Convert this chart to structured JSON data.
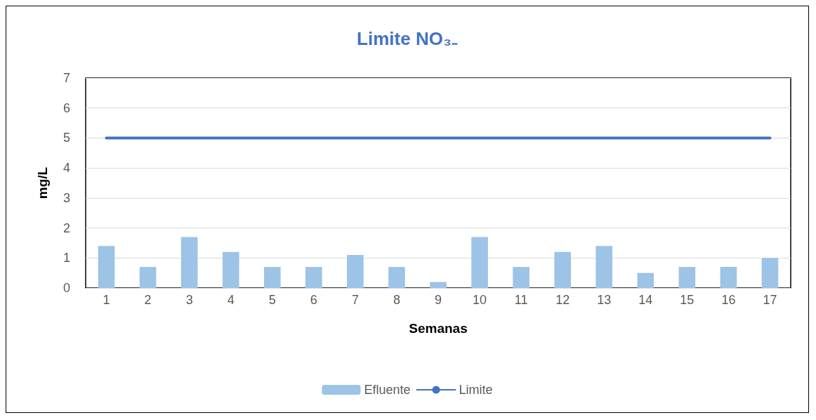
{
  "chart_data": {
    "type": "bar",
    "title": "Limite NO₃₋",
    "xlabel": "Semanas",
    "ylabel": "mg/L",
    "categories": [
      "1",
      "2",
      "3",
      "4",
      "5",
      "6",
      "7",
      "8",
      "9",
      "10",
      "11",
      "12",
      "13",
      "14",
      "15",
      "16",
      "17"
    ],
    "series": [
      {
        "name": "Efluente",
        "color": "#9dc3e6",
        "values": [
          1.4,
          0.7,
          1.7,
          1.2,
          0.7,
          0.7,
          1.1,
          0.7,
          0.2,
          1.7,
          0.7,
          1.2,
          1.4,
          0.5,
          0.7,
          0.7,
          1.0
        ]
      },
      {
        "name": "Limite",
        "type": "line",
        "color": "#4472c4",
        "values": [
          5,
          5,
          5,
          5,
          5,
          5,
          5,
          5,
          5,
          5,
          5,
          5,
          5,
          5,
          5,
          5,
          5
        ]
      }
    ],
    "ylim": [
      0,
      7
    ],
    "yticks": [
      0,
      1,
      2,
      3,
      4,
      5,
      6,
      7
    ],
    "grid": "y",
    "legend": "bottom",
    "marker": "none"
  }
}
